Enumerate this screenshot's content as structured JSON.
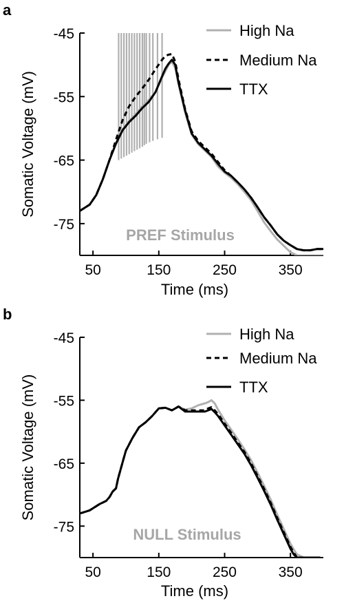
{
  "chart_data": [
    {
      "type": "line",
      "panel_label": "a",
      "annotation": "PREF Stimulus",
      "xlabel": "Time (ms)",
      "ylabel": "Somatic Voltage (mV)",
      "xlim": [
        30,
        400
      ],
      "ylim": [
        -80,
        -45
      ],
      "xticks": [
        50,
        150,
        250,
        350
      ],
      "yticks": [
        -45,
        -55,
        -65,
        -75
      ],
      "grid": false,
      "legend_position": "top-right",
      "spikes": {
        "series": "High Na",
        "peak": -45,
        "trough_min": -65,
        "trough_max": -61.5,
        "times": [
          89,
          93,
          97,
          101,
          105,
          109,
          113,
          117,
          121,
          125,
          128,
          131,
          136,
          141,
          148,
          155
        ]
      },
      "series": [
        {
          "name": "High Na",
          "style": "gray-solid",
          "x": [
            30,
            45,
            55,
            65,
            75,
            85,
            95,
            105,
            115,
            125,
            135,
            145,
            155,
            160,
            165,
            170,
            175,
            180,
            190,
            200,
            210,
            220,
            230,
            240,
            250,
            260,
            270,
            280,
            290,
            300,
            310,
            320,
            330,
            340,
            350,
            360,
            370,
            380,
            390,
            400
          ],
          "y": [
            -73,
            -72,
            -70.5,
            -68,
            -65,
            -62.3,
            -60.2,
            -58.8,
            -57.8,
            -56.5,
            -55.5,
            -54.3,
            -52,
            -51,
            -50,
            -49.5,
            -50.5,
            -53,
            -57.5,
            -61,
            -62.5,
            -63.5,
            -64.5,
            -66,
            -67,
            -67.8,
            -68.8,
            -70,
            -71.3,
            -73,
            -74.8,
            -76.2,
            -77.5,
            -78.5,
            -79.5,
            -80,
            -80,
            -80,
            -80,
            -80
          ]
        },
        {
          "name": "Medium Na",
          "style": "black-dashed",
          "x": [
            30,
            45,
            55,
            65,
            75,
            85,
            95,
            105,
            115,
            125,
            135,
            145,
            155,
            160,
            165,
            170,
            175,
            180,
            190,
            200,
            210,
            220,
            230,
            240,
            250,
            260,
            270,
            280,
            290,
            300,
            310,
            320,
            330,
            340,
            350,
            360,
            370,
            380,
            390,
            400
          ],
          "y": [
            -73,
            -72,
            -70.5,
            -68,
            -65,
            -61.8,
            -58.7,
            -56.5,
            -55,
            -53.7,
            -52.3,
            -50.7,
            -49.2,
            -48.6,
            -48.4,
            -48.3,
            -49.5,
            -52.3,
            -57,
            -60.5,
            -62,
            -63,
            -64,
            -65.3,
            -66.6,
            -67.5,
            -68.5,
            -69.6,
            -70.9,
            -72.4,
            -74,
            -75.3,
            -76.7,
            -77.7,
            -78.4,
            -79,
            -79.2,
            -79.2,
            -79,
            -79
          ]
        },
        {
          "name": "TTX",
          "style": "black-solid",
          "x": [
            30,
            45,
            55,
            65,
            75,
            85,
            95,
            105,
            115,
            125,
            135,
            145,
            155,
            160,
            165,
            170,
            175,
            180,
            190,
            200,
            210,
            220,
            230,
            240,
            250,
            260,
            270,
            280,
            290,
            300,
            310,
            320,
            330,
            340,
            350,
            360,
            370,
            380,
            390,
            400
          ],
          "y": [
            -73,
            -72,
            -70.5,
            -68,
            -65,
            -62.4,
            -60.3,
            -59,
            -58,
            -56.8,
            -55.8,
            -54.3,
            -51.8,
            -50.6,
            -49.8,
            -49.2,
            -50,
            -52.8,
            -57.2,
            -60.8,
            -62.3,
            -63.3,
            -64.3,
            -65.6,
            -66.8,
            -67.5,
            -68.5,
            -69.6,
            -70.9,
            -72.4,
            -74,
            -75.3,
            -76.7,
            -77.7,
            -78.4,
            -79,
            -79.2,
            -79.2,
            -79,
            -79
          ]
        }
      ]
    },
    {
      "type": "line",
      "panel_label": "b",
      "annotation": "NULL Stimulus",
      "xlabel": "Time (ms)",
      "ylabel": "Somatic Voltage (mV)",
      "xlim": [
        30,
        400
      ],
      "ylim": [
        -80,
        -45
      ],
      "xticks": [
        50,
        150,
        250,
        350
      ],
      "yticks": [
        -45,
        -55,
        -65,
        -75
      ],
      "grid": false,
      "legend_position": "top-right",
      "series": [
        {
          "name": "High Na",
          "style": "gray-solid",
          "x": [
            30,
            45,
            60,
            70,
            75,
            80,
            85,
            88,
            92,
            96,
            100,
            110,
            120,
            130,
            140,
            150,
            160,
            170,
            180,
            190,
            200,
            210,
            220,
            225,
            230,
            235,
            240,
            250,
            260,
            270,
            280,
            290,
            300,
            310,
            320,
            330,
            340,
            350,
            355,
            360,
            370,
            380,
            390,
            395
          ],
          "y": [
            -73,
            -72.5,
            -71.5,
            -71,
            -70.4,
            -69.5,
            -69,
            -67.5,
            -66,
            -64.5,
            -63,
            -61,
            -59.3,
            -58.5,
            -57.5,
            -56.3,
            -56.2,
            -56.6,
            -56,
            -56.5,
            -56.3,
            -55.8,
            -55.5,
            -55.3,
            -55,
            -55.5,
            -56.5,
            -58.2,
            -59.7,
            -61.2,
            -62.8,
            -64.5,
            -66.5,
            -68.6,
            -70.8,
            -73.2,
            -75.5,
            -77.8,
            -78.7,
            -79.5,
            -80,
            -80,
            -80,
            -80
          ]
        },
        {
          "name": "Medium Na",
          "style": "black-dashed",
          "x": [
            30,
            45,
            60,
            70,
            75,
            80,
            85,
            88,
            92,
            96,
            100,
            110,
            120,
            130,
            140,
            150,
            160,
            170,
            180,
            190,
            200,
            210,
            220,
            225,
            230,
            235,
            240,
            250,
            260,
            270,
            280,
            290,
            300,
            310,
            320,
            330,
            340,
            350,
            355,
            360,
            370,
            380,
            390,
            395
          ],
          "y": [
            -73,
            -72.5,
            -71.5,
            -71,
            -70.4,
            -69.5,
            -69,
            -67.5,
            -66,
            -64.5,
            -63,
            -61,
            -59.3,
            -58.5,
            -57.5,
            -56.3,
            -56.2,
            -56.6,
            -56,
            -56.6,
            -56.6,
            -56.6,
            -56.6,
            -56.3,
            -56.1,
            -56.6,
            -57.2,
            -58.7,
            -60.2,
            -61.7,
            -63.2,
            -65,
            -67,
            -69.1,
            -71.3,
            -73.7,
            -76,
            -78.3,
            -79.2,
            -80,
            -80,
            -80,
            -80,
            -80
          ]
        },
        {
          "name": "TTX",
          "style": "black-solid",
          "x": [
            30,
            45,
            60,
            70,
            75,
            80,
            85,
            88,
            92,
            96,
            100,
            110,
            120,
            130,
            140,
            150,
            160,
            170,
            180,
            190,
            200,
            210,
            220,
            225,
            230,
            235,
            240,
            250,
            260,
            270,
            280,
            290,
            300,
            310,
            320,
            330,
            340,
            350,
            355,
            360,
            370,
            380,
            390,
            395
          ],
          "y": [
            -73,
            -72.5,
            -71.5,
            -71,
            -70.4,
            -69.5,
            -69,
            -67.5,
            -66,
            -64.5,
            -63,
            -61,
            -59.3,
            -58.5,
            -57.5,
            -56.3,
            -56.2,
            -56.6,
            -56,
            -56.8,
            -56.8,
            -56.8,
            -56.8,
            -56.6,
            -56.4,
            -56.9,
            -57.5,
            -59,
            -60.5,
            -62,
            -63.5,
            -65.3,
            -67.3,
            -69.4,
            -71.6,
            -74,
            -76.3,
            -78.6,
            -79.5,
            -80,
            -80,
            -80,
            -80,
            -80
          ]
        }
      ]
    }
  ],
  "colors": {
    "high_na": "#b0b0b0",
    "medium_na": "#000000",
    "ttx": "#000000",
    "annotation": "#a6a6a6",
    "axis": "#000000"
  }
}
